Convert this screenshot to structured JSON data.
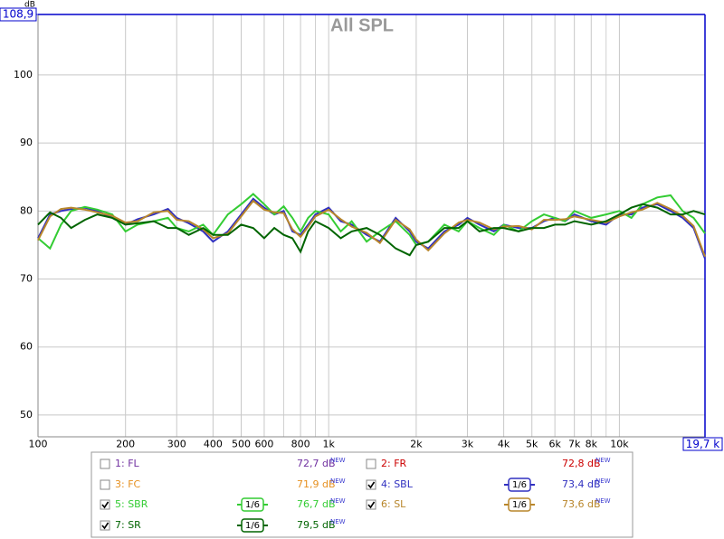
{
  "chart_data": {
    "type": "line",
    "title": "All SPL",
    "y_unit": "dB",
    "log_x": true,
    "grid": true,
    "xlim": [
      100,
      19700
    ],
    "ylim": [
      46.8,
      108.9
    ],
    "xticks": [
      100,
      200,
      300,
      400,
      500,
      600,
      800,
      {
        "value": 1000,
        "label": "1k"
      },
      {
        "value": 2000,
        "label": "2k"
      },
      {
        "value": 3000,
        "label": "3k"
      },
      {
        "value": 4000,
        "label": "4k"
      },
      {
        "value": 5000,
        "label": "5k"
      },
      {
        "value": 6000,
        "label": "6k"
      },
      {
        "value": 7000,
        "label": "7k"
      },
      {
        "value": 8000,
        "label": "8k"
      },
      {
        "value": 10000,
        "label": "10k"
      },
      {
        "value": 19700,
        "label": "19,7 k"
      }
    ],
    "xminor": [
      700,
      900,
      9000
    ],
    "yticks": [
      50,
      60,
      70,
      80,
      90,
      100,
      {
        "value": 108.9,
        "label": "108,9"
      }
    ],
    "new_label": "NEW",
    "x": [
      100,
      110,
      120,
      130,
      145,
      160,
      180,
      200,
      220,
      250,
      280,
      300,
      330,
      370,
      400,
      450,
      500,
      550,
      600,
      650,
      700,
      750,
      800,
      850,
      900,
      1000,
      1100,
      1200,
      1350,
      1500,
      1700,
      1900,
      2000,
      2200,
      2500,
      2800,
      3000,
      3300,
      3700,
      4000,
      4500,
      5000,
      5500,
      6000,
      6500,
      7000,
      8000,
      9000,
      10000,
      11000,
      12000,
      13500,
      15000,
      16500,
      18000,
      19700
    ],
    "series": [
      {
        "name": "1: FL",
        "color": "#7030a0",
        "checked": false,
        "level": 72.7,
        "level_label": "72,7 dB"
      },
      {
        "name": "2: FR",
        "color": "#cc0000",
        "checked": false,
        "level": 72.8,
        "level_label": "72,8 dB"
      },
      {
        "name": "3: FC",
        "color": "#e69020",
        "checked": false,
        "level": 71.9,
        "level_label": "71,9 dB"
      },
      {
        "name": "4: SBL",
        "color": "#3030c0",
        "checked": true,
        "smoothing": "1/6",
        "level": 73.4,
        "level_label": "73,4 dB",
        "values": [
          76,
          79.5,
          80,
          80.3,
          80.5,
          80,
          79,
          78,
          78.8,
          79.5,
          80.3,
          79,
          78.2,
          77,
          75.5,
          77,
          79.5,
          81.8,
          80.5,
          79.5,
          80,
          77,
          76.5,
          78,
          79.5,
          80.5,
          78.5,
          78,
          76.5,
          75.5,
          79,
          77,
          75.5,
          74.5,
          77,
          78,
          79,
          78,
          77,
          78,
          77.5,
          77.5,
          78.5,
          79,
          78.5,
          79.5,
          78.5,
          78,
          79.5,
          79.5,
          80.5,
          81,
          80,
          79,
          77.5,
          73
        ]
      },
      {
        "name": "5: SBR",
        "color": "#33cc33",
        "checked": true,
        "smoothing": "1/6",
        "level": 76.7,
        "level_label": "76,7 dB",
        "values": [
          76,
          74.5,
          78,
          80,
          80.6,
          80.2,
          79.5,
          77,
          78,
          78.5,
          79,
          77.5,
          77,
          78,
          76.5,
          79.5,
          81,
          82.5,
          81,
          79.5,
          80.7,
          79,
          77,
          79,
          80,
          79.5,
          77,
          78.5,
          75.5,
          77,
          78.5,
          76.5,
          75,
          75.5,
          78,
          77,
          78.5,
          77.5,
          76.5,
          78,
          77,
          78.5,
          79.5,
          79,
          78.5,
          80,
          79,
          79.5,
          80,
          79,
          81,
          82,
          82.3,
          80,
          79,
          76.7
        ]
      },
      {
        "name": "6: SL",
        "color": "#b8862b",
        "checked": true,
        "smoothing": "1/6",
        "level": 73.6,
        "level_label": "73,6 dB",
        "values": [
          75.7,
          79.2,
          80.3,
          80.5,
          80.2,
          79.8,
          79.3,
          78.3,
          78.5,
          79.8,
          80,
          78.7,
          78.5,
          77.3,
          76,
          76.7,
          79.2,
          81.5,
          80.2,
          79.8,
          79.7,
          77.3,
          76.2,
          77.7,
          79.2,
          80.2,
          78.8,
          77.7,
          76.8,
          75.3,
          78.7,
          77.3,
          75.8,
          74.2,
          76.7,
          78.3,
          78.7,
          78.3,
          77.3,
          77.7,
          77.8,
          77.3,
          78.7,
          78.7,
          78.8,
          79.2,
          78.7,
          78.3,
          79.2,
          79.8,
          80.2,
          81.2,
          80.3,
          79.3,
          77.8,
          73.3
        ]
      },
      {
        "name": "7: SR",
        "color": "#006400",
        "checked": true,
        "smoothing": "1/6",
        "level": 79.5,
        "level_label": "79,5 dB",
        "values": [
          78,
          79.8,
          79,
          77.5,
          78.7,
          79.5,
          79,
          78,
          78.2,
          78.5,
          77.5,
          77.5,
          76.5,
          77.5,
          76.5,
          76.5,
          78,
          77.5,
          76,
          77.5,
          76.5,
          76,
          74,
          77,
          78.5,
          77.5,
          76,
          77,
          77.5,
          76.5,
          74.5,
          73.5,
          75,
          75.5,
          77.5,
          77.5,
          78.5,
          77,
          77.5,
          77.5,
          77,
          77.5,
          77.5,
          78,
          78,
          78.5,
          78,
          78.5,
          79.5,
          80.5,
          81,
          80.5,
          79.5,
          79.5,
          80,
          79.5
        ]
      }
    ]
  }
}
